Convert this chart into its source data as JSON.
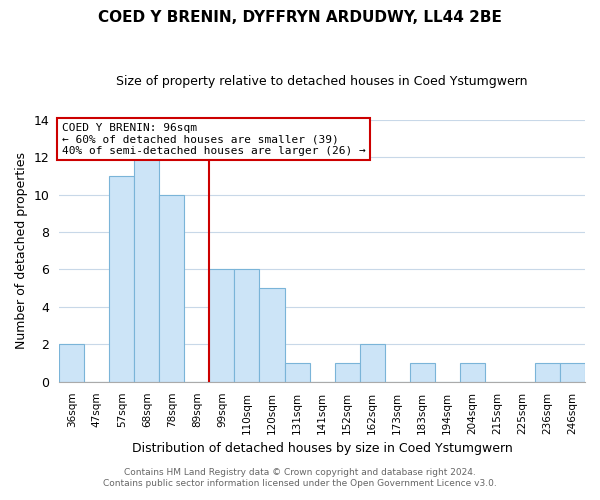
{
  "title": "COED Y BRENIN, DYFFRYN ARDUDWY, LL44 2BE",
  "subtitle": "Size of property relative to detached houses in Coed Ystumgwern",
  "xlabel": "Distribution of detached houses by size in Coed Ystumgwern",
  "ylabel": "Number of detached properties",
  "footer_line1": "Contains HM Land Registry data © Crown copyright and database right 2024.",
  "footer_line2": "Contains public sector information licensed under the Open Government Licence v3.0.",
  "bin_labels": [
    "36sqm",
    "47sqm",
    "57sqm",
    "68sqm",
    "78sqm",
    "89sqm",
    "99sqm",
    "110sqm",
    "120sqm",
    "131sqm",
    "141sqm",
    "152sqm",
    "162sqm",
    "173sqm",
    "183sqm",
    "194sqm",
    "204sqm",
    "215sqm",
    "225sqm",
    "236sqm",
    "246sqm"
  ],
  "bar_heights": [
    2,
    0,
    11,
    12,
    10,
    0,
    6,
    6,
    5,
    1,
    0,
    1,
    2,
    0,
    1,
    0,
    1,
    0,
    0,
    1,
    1
  ],
  "bar_color": "#cce4f7",
  "bar_edge_color": "#7ab4d8",
  "vline_color": "#cc0000",
  "annotation_title": "COED Y BRENIN: 96sqm",
  "annotation_line1": "← 60% of detached houses are smaller (39)",
  "annotation_line2": "40% of semi-detached houses are larger (26) →",
  "annotation_box_edgecolor": "#cc0000",
  "ylim": [
    0,
    14
  ],
  "yticks": [
    0,
    2,
    4,
    6,
    8,
    10,
    12,
    14
  ],
  "background_color": "#ffffff",
  "grid_color": "#c8d8e8"
}
